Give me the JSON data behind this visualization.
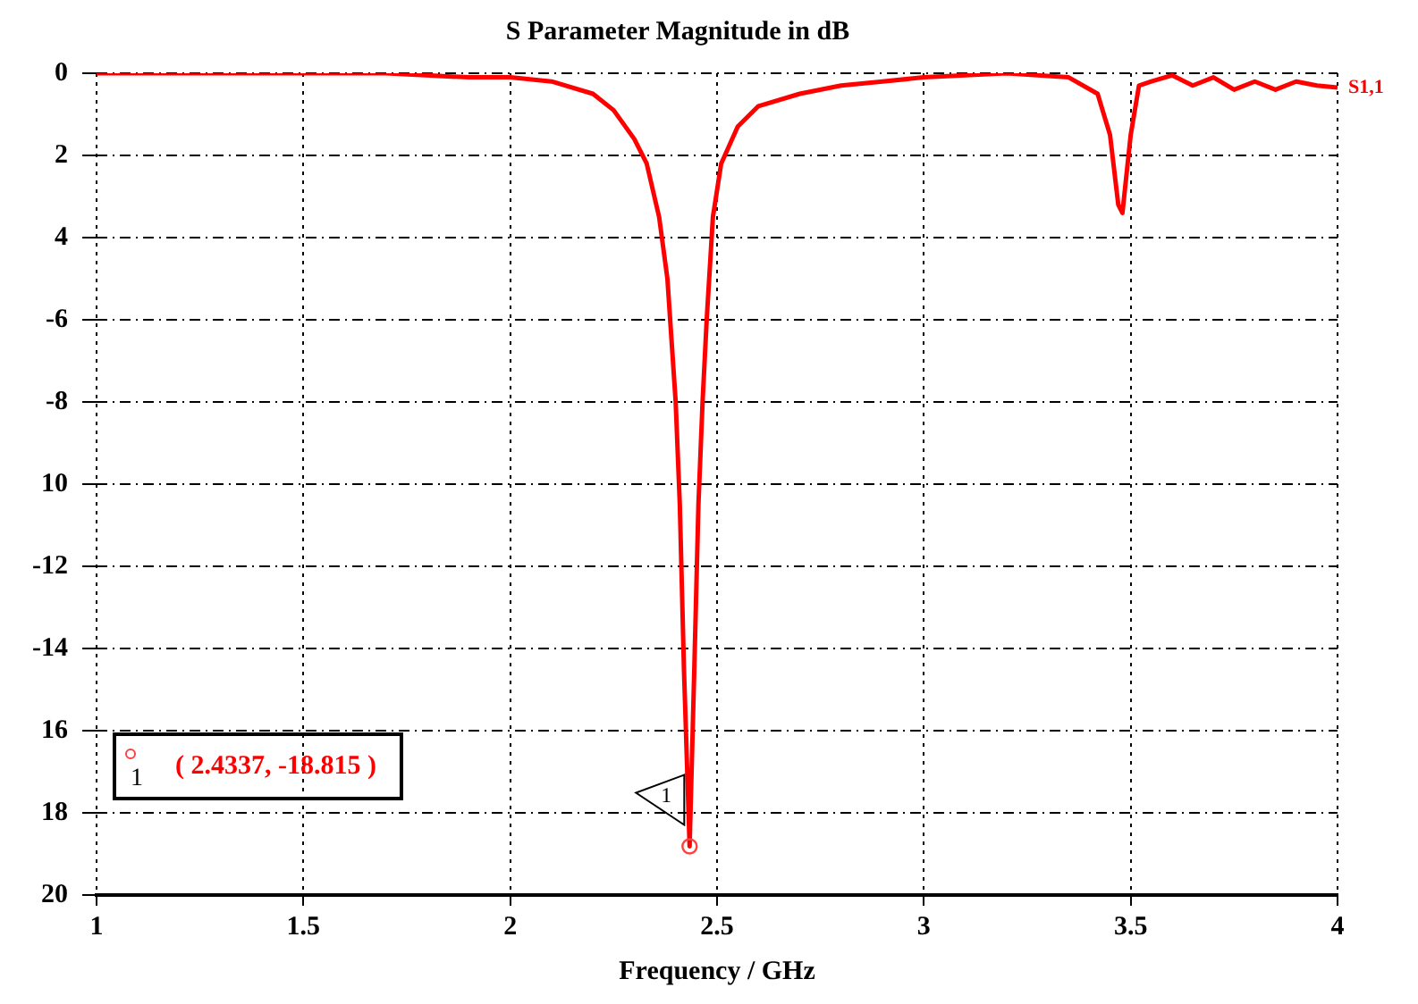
{
  "chart_data": {
    "type": "line",
    "title": "S Parameter Magnitude in dB",
    "xlabel": "Frequency / GHz",
    "x": [
      1.0,
      1.7,
      1.9,
      2.0,
      2.1,
      2.2,
      2.25,
      2.3,
      2.33,
      2.36,
      2.38,
      2.4,
      2.41,
      2.42,
      2.4337,
      2.445,
      2.455,
      2.465,
      2.475,
      2.49,
      2.51,
      2.55,
      2.6,
      2.7,
      2.8,
      2.9,
      3.0,
      3.2,
      3.35,
      3.42,
      3.45,
      3.47,
      3.48,
      3.5,
      3.52,
      3.55,
      3.6,
      3.65,
      3.7,
      3.75,
      3.8,
      3.85,
      3.9,
      3.95,
      4.0
    ],
    "series": [
      {
        "name": "S1,1",
        "color": "#ff0000",
        "values": [
          0,
          0,
          -0.1,
          -0.1,
          -0.2,
          -0.5,
          -0.9,
          -1.6,
          -2.2,
          -3.5,
          -5,
          -8,
          -10.5,
          -14.5,
          -18.815,
          -14.5,
          -10.5,
          -8,
          -6,
          -3.5,
          -2.2,
          -1.3,
          -0.8,
          -0.5,
          -0.3,
          -0.2,
          -0.1,
          0,
          -0.1,
          -0.5,
          -1.5,
          -3.2,
          -3.4,
          -1.5,
          -0.3,
          -0.2,
          -0.05,
          -0.3,
          -0.1,
          -0.4,
          -0.2,
          -0.4,
          -0.2,
          -0.3,
          -0.35
        ]
      }
    ],
    "xlim": [
      1,
      4
    ],
    "xticks": [
      1,
      1.5,
      2,
      2.5,
      3,
      3.5,
      4
    ],
    "ylim": [
      -20,
      0
    ],
    "yticks": [
      0,
      {
        "value": -2,
        "label": "2"
      },
      {
        "value": -4,
        "label": "4"
      },
      -6,
      -8,
      {
        "value": -10,
        "label": "10"
      },
      -12,
      -14,
      {
        "value": -16,
        "label": "16"
      },
      {
        "value": -18,
        "label": "18"
      },
      {
        "value": -20,
        "label": "20"
      }
    ],
    "grid": true,
    "legend": false,
    "marker": "none",
    "line_style": "solid",
    "annotations": [
      {
        "text": "1",
        "x": 2.4337,
        "y": -18.815
      },
      "1",
      "( 2.4337, -18.815 )"
    ]
  }
}
